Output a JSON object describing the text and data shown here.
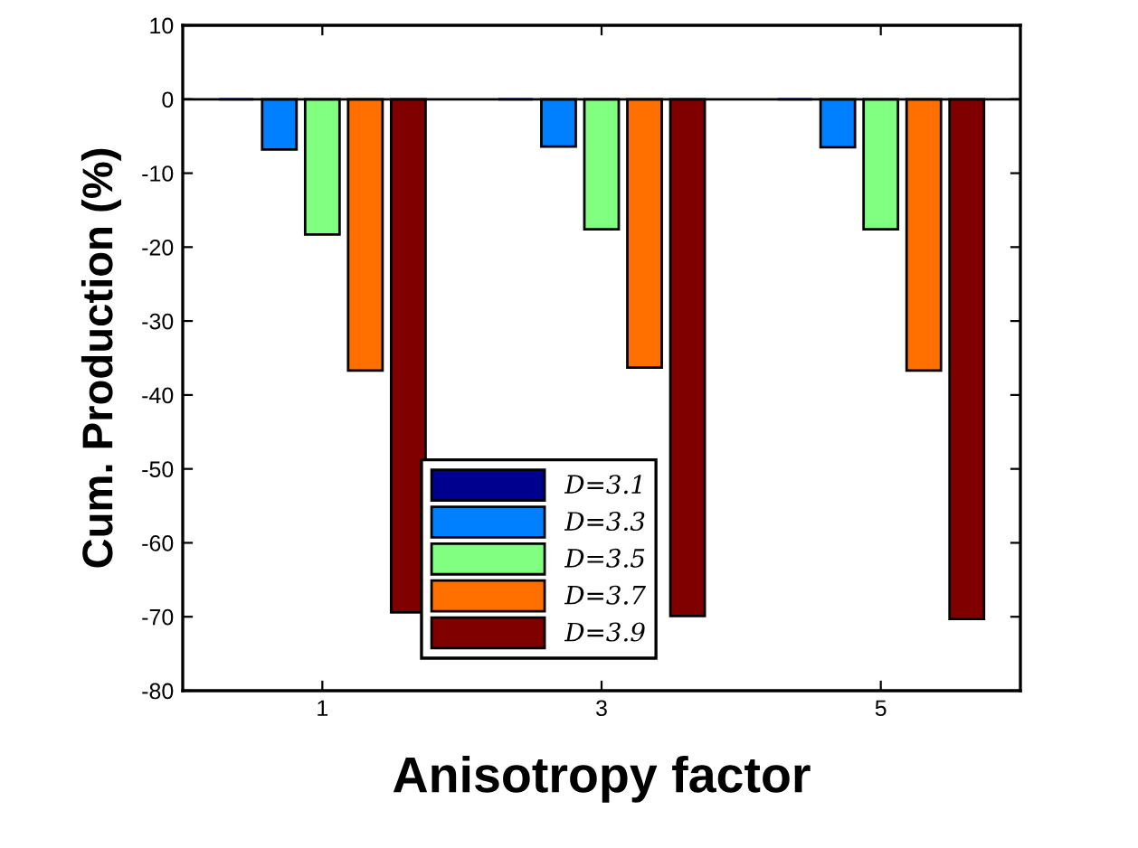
{
  "chart_data": {
    "type": "bar",
    "xlabel": "Anisotropy factor",
    "ylabel": "Cum. Production (%)",
    "categories": [
      "1",
      "3",
      "5"
    ],
    "series": [
      {
        "name": "D=3.1",
        "color": "#00008f",
        "values": [
          0,
          0,
          0
        ]
      },
      {
        "name": "D=3.3",
        "color": "#0080ff",
        "values": [
          -6.8,
          -6.4,
          -6.5
        ]
      },
      {
        "name": "D=3.5",
        "color": "#80ff80",
        "values": [
          -18.3,
          -17.6,
          -17.6
        ]
      },
      {
        "name": "D=3.7",
        "color": "#ff7000",
        "values": [
          -36.7,
          -36.3,
          -36.7
        ]
      },
      {
        "name": "D=3.9",
        "color": "#800000",
        "values": [
          -69.4,
          -69.9,
          -70.3
        ]
      }
    ],
    "ylim": [
      -80,
      10
    ],
    "yticks": [
      -80,
      -70,
      -60,
      -50,
      -40,
      -30,
      -20,
      -10,
      0,
      10
    ],
    "grid": false,
    "ref_lines": [
      {
        "axis": "y",
        "value": 0,
        "color": "#000000"
      }
    ],
    "legend": "bottom"
  }
}
